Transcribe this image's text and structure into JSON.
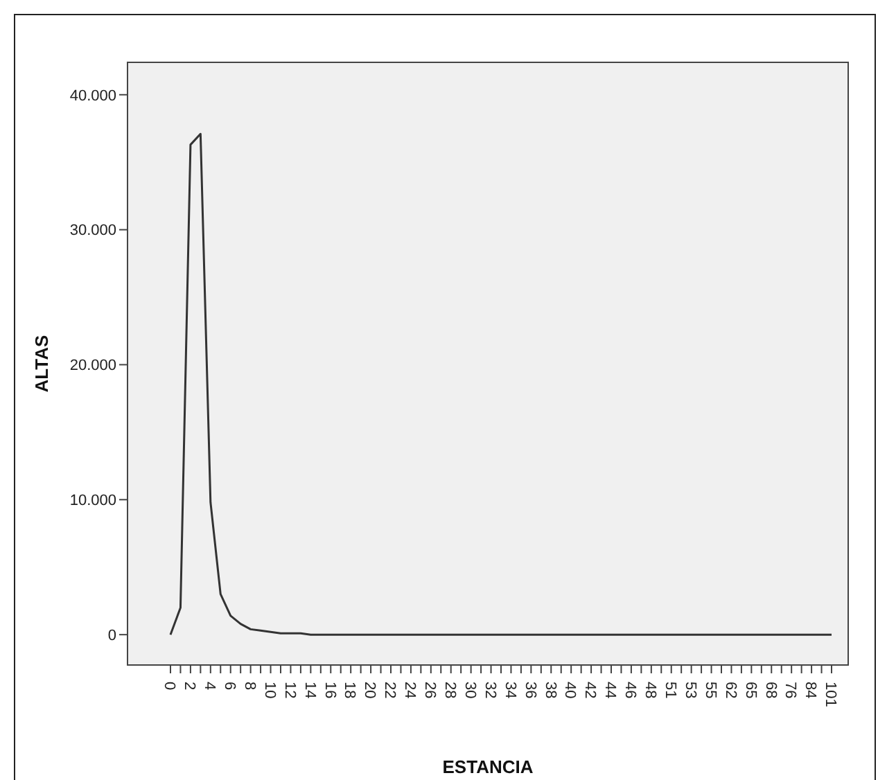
{
  "chart_data": {
    "type": "line",
    "xlabel": "ESTANCIA",
    "ylabel": "ALTAS",
    "categories": [
      "0",
      null,
      "2",
      null,
      "4",
      null,
      "6",
      null,
      "8",
      null,
      "10",
      null,
      "12",
      null,
      "14",
      null,
      "16",
      null,
      "18",
      null,
      "20",
      null,
      "22",
      null,
      "24",
      null,
      "26",
      null,
      "28",
      null,
      "30",
      null,
      "32",
      null,
      "34",
      null,
      "36",
      null,
      "38",
      null,
      "40",
      null,
      "42",
      null,
      "44",
      null,
      "46",
      null,
      "48",
      null,
      "51",
      null,
      "53",
      null,
      "55",
      null,
      "62",
      null,
      "65",
      null,
      "68",
      null,
      "76",
      null,
      "84",
      null,
      "101"
    ],
    "series": [
      {
        "color": "#333333",
        "values": [
          0,
          2000,
          36300,
          37100,
          9800,
          3000,
          1400,
          800,
          400,
          300,
          200,
          100,
          100,
          100,
          0,
          0,
          0,
          0,
          0,
          0,
          0,
          0,
          0,
          0,
          0,
          0,
          0,
          0,
          0,
          0,
          0,
          0,
          0,
          0,
          0,
          0,
          0,
          0,
          0,
          0,
          0,
          0,
          0,
          0,
          0,
          0,
          0,
          0,
          0,
          0,
          0,
          0,
          0,
          0,
          0,
          0,
          0,
          0,
          0,
          0,
          0,
          0,
          0,
          0,
          0,
          0,
          0
        ]
      }
    ],
    "ylim": [
      -2250,
      42400
    ],
    "yticks": [
      {
        "value": 0,
        "label": "0"
      },
      {
        "value": 10000,
        "label": "10.000"
      },
      {
        "value": 20000,
        "label": "20.000"
      },
      {
        "value": 30000,
        "label": "30.000"
      },
      {
        "value": 40000,
        "label": "40.000"
      }
    ],
    "marker": "none",
    "line_style": "solid"
  }
}
